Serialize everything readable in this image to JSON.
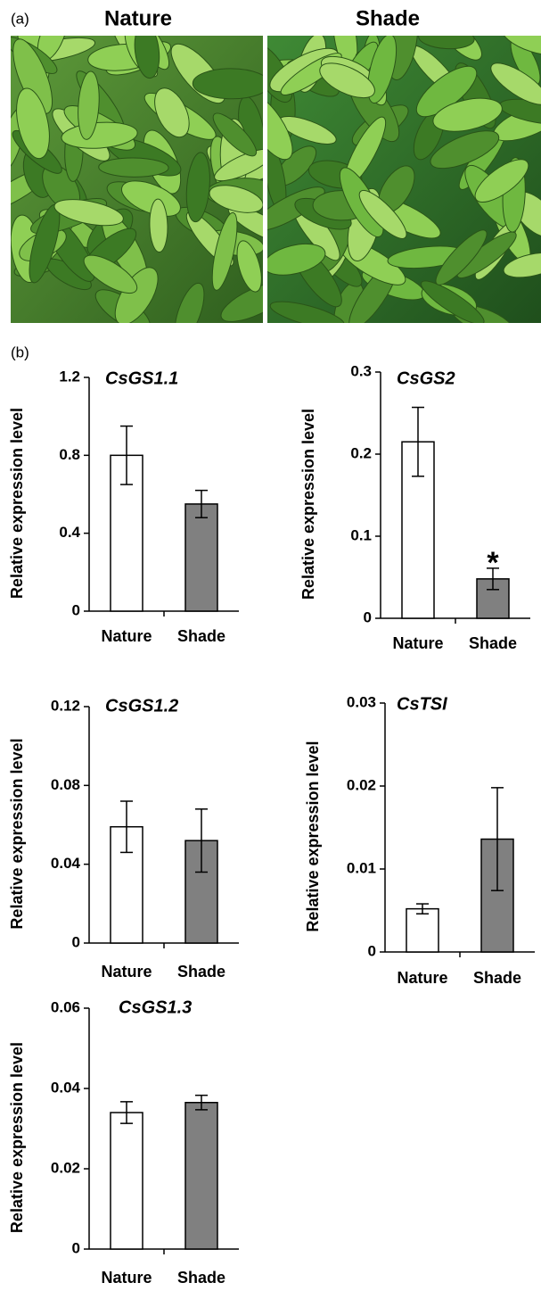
{
  "panels": {
    "a_label": "(a)",
    "photo_labels": [
      "Nature",
      "Shade"
    ],
    "b_label": "(b)"
  },
  "chart_data": [
    {
      "type": "bar",
      "title": "CsGS1.1",
      "ylabel": "Relative expression level",
      "categories": [
        "Nature",
        "Shade"
      ],
      "values": [
        0.8,
        0.55
      ],
      "errors": [
        0.15,
        0.07
      ],
      "colors": [
        "#ffffff",
        "#808080"
      ],
      "ylim": [
        0,
        1.2
      ],
      "yticks": [
        0,
        0.4,
        0.8,
        1.2
      ]
    },
    {
      "type": "bar",
      "title": "CsGS2",
      "ylabel": "Relative expression level",
      "categories": [
        "Nature",
        "Shade"
      ],
      "values": [
        0.215,
        0.048
      ],
      "errors": [
        0.042,
        0.013
      ],
      "colors": [
        "#ffffff",
        "#808080"
      ],
      "ylim": [
        0,
        0.3
      ],
      "yticks": [
        0,
        0.1,
        0.2,
        0.3
      ],
      "annotation": "*"
    },
    {
      "type": "bar",
      "title": "CsGS1.2",
      "ylabel": "Relative expression level",
      "categories": [
        "Nature",
        "Shade"
      ],
      "values": [
        0.059,
        0.052
      ],
      "errors": [
        0.013,
        0.016
      ],
      "colors": [
        "#ffffff",
        "#808080"
      ],
      "ylim": [
        0,
        0.12
      ],
      "yticks": [
        0,
        0.04,
        0.08,
        0.12
      ]
    },
    {
      "type": "bar",
      "title": "CsTSI",
      "ylabel": "Relative expression level",
      "categories": [
        "Nature",
        "Shade"
      ],
      "values": [
        0.0052,
        0.0136
      ],
      "errors": [
        0.0006,
        0.0062
      ],
      "colors": [
        "#ffffff",
        "#808080"
      ],
      "ylim": [
        0,
        0.03
      ],
      "yticks": [
        0,
        0.01,
        0.02,
        0.03
      ]
    },
    {
      "type": "bar",
      "title": "CsGS1.3",
      "ylabel": "Relative expression level",
      "categories": [
        "Nature",
        "Shade"
      ],
      "values": [
        0.034,
        0.0365
      ],
      "errors": [
        0.0027,
        0.0018
      ],
      "colors": [
        "#ffffff",
        "#808080"
      ],
      "ylim": [
        0,
        0.06
      ],
      "yticks": [
        0,
        0.02,
        0.04,
        0.06
      ]
    }
  ]
}
